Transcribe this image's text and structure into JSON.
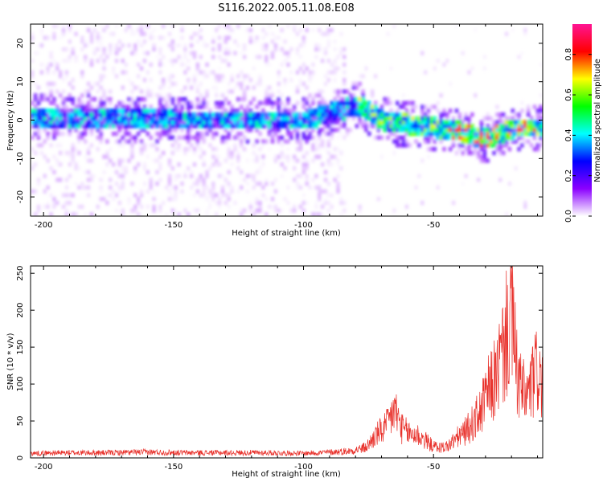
{
  "figure_title": "S116.2022.005.11.08.E08",
  "chart_data": [
    {
      "type": "heatmap",
      "title": "",
      "xlabel": "Height of straight line (km)",
      "ylabel": "Frequency (Hz)",
      "xlim": [
        -205,
        -8
      ],
      "ylim": [
        -25,
        25
      ],
      "xticks": [
        -200,
        -150,
        -100,
        -50
      ],
      "yticks": [
        -20,
        -10,
        0,
        10,
        20
      ],
      "colorbar": {
        "label": "Normalized spectral amplitude",
        "range": [
          0,
          0.95
        ],
        "ticks": [
          0.0,
          0.2,
          0.4,
          0.6,
          0.8
        ],
        "colors": [
          "#ffffff",
          "#8b00ff",
          "#0000ff",
          "#00ffff",
          "#00ff00",
          "#ffff00",
          "#ff0000",
          "#ff1493"
        ]
      },
      "ridge": {
        "description": "dominant frequency vs height",
        "x": [
          -205,
          -150,
          -100,
          -80,
          -70,
          -60,
          -50,
          -40,
          -30,
          -20,
          -8
        ],
        "y": [
          1,
          0,
          0,
          4,
          0,
          -1,
          -2,
          -3,
          -5,
          -2,
          -2
        ]
      }
    },
    {
      "type": "line",
      "title": "",
      "xlabel": "Height of straight line (km)",
      "ylabel": "SNR (10 * v/v)",
      "xlim": [
        -205,
        -8
      ],
      "ylim": [
        0,
        260
      ],
      "xticks": [
        -200,
        -150,
        -100,
        -50
      ],
      "yticks": [
        0,
        50,
        100,
        150,
        200,
        250
      ],
      "line_color": "#e8302a",
      "series": [
        {
          "x": [
            -205,
            -190,
            -175,
            -160,
            -145,
            -130,
            -115,
            -100,
            -90,
            -82,
            -76,
            -72,
            -68,
            -65,
            -62,
            -59,
            -56,
            -53,
            -50,
            -47,
            -44,
            -41,
            -38,
            -35,
            -32,
            -29,
            -26,
            -23,
            -20,
            -18,
            -16,
            -14,
            -12,
            -10,
            -8
          ],
          "values": [
            8,
            9,
            9,
            10,
            9,
            9,
            9,
            8,
            10,
            12,
            18,
            40,
            55,
            85,
            50,
            42,
            40,
            30,
            20,
            18,
            22,
            35,
            45,
            60,
            80,
            115,
            140,
            190,
            255,
            150,
            115,
            105,
            130,
            155,
            120
          ]
        }
      ]
    }
  ]
}
